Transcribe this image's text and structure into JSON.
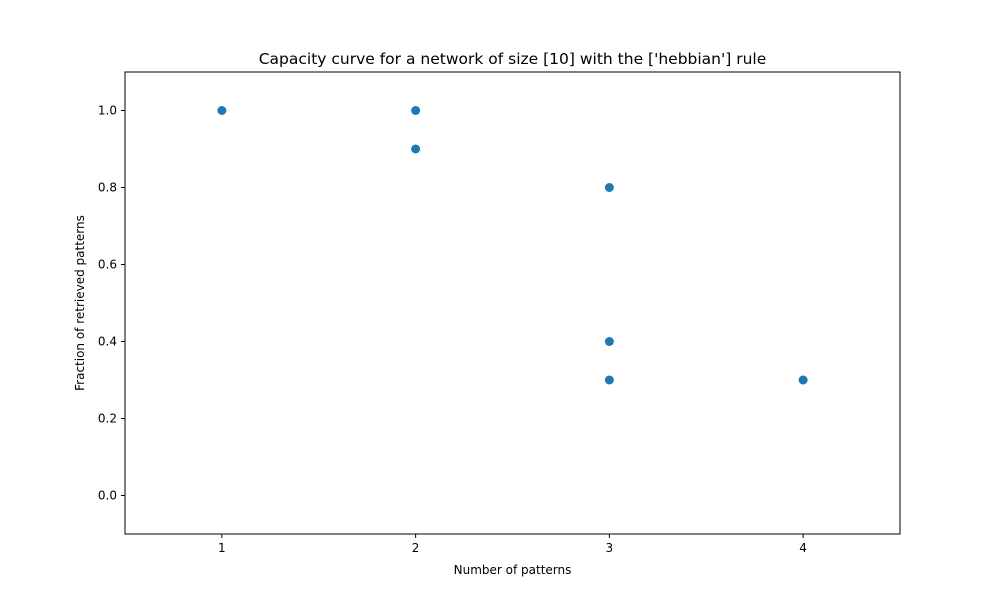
{
  "chart_data": {
    "type": "scatter",
    "title": "Capacity curve for a network of size [10] with the ['hebbian'] rule",
    "xlabel": "Number of patterns",
    "ylabel": "Fraction of retrieved patterns",
    "xlim": [
      0.5,
      4.5
    ],
    "ylim": [
      -0.1,
      1.1
    ],
    "x_ticks": [
      1,
      2,
      3,
      4
    ],
    "y_ticks": [
      0.0,
      0.2,
      0.4,
      0.6,
      0.8,
      1.0
    ],
    "x_tick_labels": [
      "1",
      "2",
      "3",
      "4"
    ],
    "y_tick_labels": [
      "0.0",
      "0.2",
      "0.4",
      "0.6",
      "0.8",
      "1.0"
    ],
    "grid": false,
    "marker_color": "#1f77b4",
    "points": [
      {
        "x": 1,
        "y": 1.0
      },
      {
        "x": 2,
        "y": 1.0
      },
      {
        "x": 2,
        "y": 0.9
      },
      {
        "x": 3,
        "y": 0.8
      },
      {
        "x": 3,
        "y": 0.4
      },
      {
        "x": 3,
        "y": 0.3
      },
      {
        "x": 4,
        "y": 0.3
      }
    ]
  }
}
